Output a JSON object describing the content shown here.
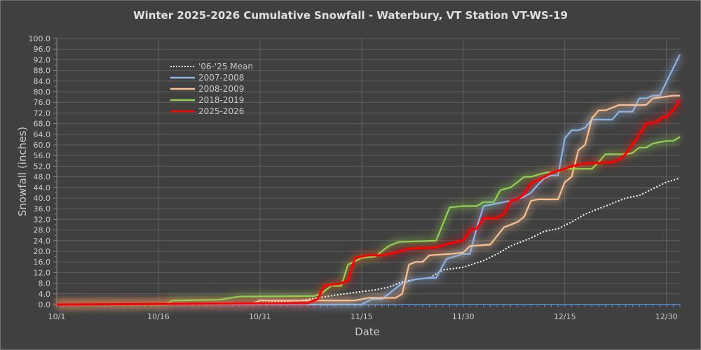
{
  "chart_data": {
    "type": "line",
    "title": "Winter 2025-2026 Cumulative Snowfall - Waterbury, VT Station VT-WS-19",
    "xlabel": "Date",
    "ylabel": "Snowfall (inches)",
    "ylim": [
      0,
      100
    ],
    "y_ticks": [
      "0.0",
      "4.0",
      "8.0",
      "12.0",
      "16.0",
      "20.0",
      "24.0",
      "28.0",
      "32.0",
      "36.0",
      "40.0",
      "44.0",
      "48.0",
      "52.0",
      "56.0",
      "60.0",
      "64.0",
      "68.0",
      "72.0",
      "76.0",
      "80.0",
      "84.0",
      "88.0",
      "92.0",
      "96.0",
      "100.0"
    ],
    "x_unit": "days since 10/1",
    "xlim": [
      0,
      92
    ],
    "x_ticks": [
      {
        "day": 0,
        "label": "10/1"
      },
      {
        "day": 15,
        "label": "10/16"
      },
      {
        "day": 30,
        "label": "10/31"
      },
      {
        "day": 45,
        "label": "11/15"
      },
      {
        "day": 60,
        "label": "11/30"
      },
      {
        "day": 75,
        "label": "12/15"
      },
      {
        "day": 90,
        "label": "12/30"
      }
    ],
    "grid": true,
    "legend_position": "top-left",
    "series": [
      {
        "name": "'06-'25 Mean",
        "color": "#ffffff",
        "style": "dotted",
        "x": [
          0,
          29,
          36,
          41,
          44,
          47,
          49,
          51,
          53,
          55,
          57,
          60,
          63,
          65,
          67,
          70,
          72,
          74,
          76,
          78,
          80,
          82,
          84,
          86,
          88,
          90,
          92
        ],
        "y": [
          0,
          0.5,
          1.5,
          3.5,
          4.5,
          5.5,
          6.5,
          8.5,
          9.5,
          10,
          13,
          14,
          16.5,
          19,
          22,
          25,
          27.5,
          28.5,
          31,
          34,
          36,
          38,
          40,
          41,
          43.5,
          46,
          47.5
        ]
      },
      {
        "name": "2007-2008",
        "color": "#8fb4e3",
        "style": "solid",
        "x": [
          0,
          45,
          46.5,
          48,
          49.5,
          51,
          53,
          55,
          56,
          57.5,
          58,
          60,
          61,
          62,
          63,
          64,
          66,
          68,
          69,
          70,
          71,
          72,
          73,
          74,
          75,
          76,
          77,
          78,
          79,
          82,
          83,
          85,
          86,
          87,
          88,
          89,
          92
        ],
        "y": [
          0,
          0,
          2,
          2,
          5,
          8,
          9.5,
          10,
          10,
          17,
          17.5,
          19,
          19,
          29,
          37,
          37.5,
          38.5,
          39.5,
          40.5,
          42,
          45,
          47.5,
          48.5,
          48.5,
          62.5,
          65.5,
          65.5,
          66.5,
          69.5,
          69.5,
          72.5,
          72.5,
          77.5,
          77.5,
          78.5,
          78.5,
          94
        ]
      },
      {
        "name": "2008-2009",
        "color": "#fac090",
        "style": "solid",
        "x": [
          0,
          29,
          30,
          44,
          46,
          50,
          51,
          52,
          53,
          54,
          55,
          58,
          60,
          61,
          64,
          66,
          68,
          69,
          70,
          71,
          74,
          75,
          76,
          77,
          78,
          79,
          80,
          81,
          82,
          83,
          87,
          88,
          91,
          92
        ],
        "y": [
          0,
          0.5,
          1.5,
          1.5,
          2.5,
          2.5,
          4,
          15,
          16,
          16,
          18.5,
          19,
          19.5,
          22,
          22.5,
          29,
          31,
          33,
          39,
          39.5,
          39.5,
          46,
          48,
          58,
          60,
          70,
          73,
          73,
          74,
          75,
          75,
          77.5,
          78.5,
          78.5
        ]
      },
      {
        "name": "2018-2019",
        "color": "#92d050",
        "style": "solid",
        "x": [
          0,
          16,
          17,
          24,
          27,
          38,
          39,
          40.5,
          42,
          43,
          45,
          47,
          49,
          50.5,
          56,
          58,
          60,
          62,
          63,
          64.5,
          65.5,
          67,
          69,
          70,
          72,
          74,
          75,
          79,
          80,
          81,
          84,
          85,
          86,
          87,
          88,
          90,
          91,
          92
        ],
        "y": [
          0,
          0,
          1.5,
          1.8,
          3,
          3.2,
          4,
          7,
          7,
          15,
          17.5,
          18,
          22,
          23.5,
          24,
          36.5,
          37,
          37,
          38.5,
          38.5,
          43,
          44,
          48,
          48,
          49.5,
          50,
          51,
          51,
          53.5,
          56.5,
          56.5,
          57,
          59,
          59,
          60.5,
          61.5,
          61.5,
          63
        ]
      },
      {
        "name": "2025-2026",
        "color": "#ff0000",
        "style": "solid",
        "x": [
          0,
          37,
          38.5,
          39.5,
          42,
          43,
          44,
          46,
          48,
          50,
          52,
          56,
          58,
          60,
          61,
          62,
          63,
          65,
          66,
          67,
          68,
          69,
          70,
          72,
          73,
          75,
          76,
          78,
          82,
          83,
          84,
          85.5,
          87,
          88.5,
          89.5,
          90,
          91,
          92
        ],
        "y": [
          0,
          0.5,
          2,
          7,
          8,
          9,
          17.5,
          18.5,
          18.5,
          19.5,
          21,
          21.5,
          23,
          24,
          28,
          28.5,
          32.5,
          32.5,
          34,
          39,
          39.5,
          41.5,
          45.5,
          48,
          49.5,
          51,
          52,
          53,
          53.5,
          54.5,
          56.5,
          62,
          68,
          68.5,
          70.5,
          70.5,
          73,
          77
        ]
      }
    ]
  }
}
